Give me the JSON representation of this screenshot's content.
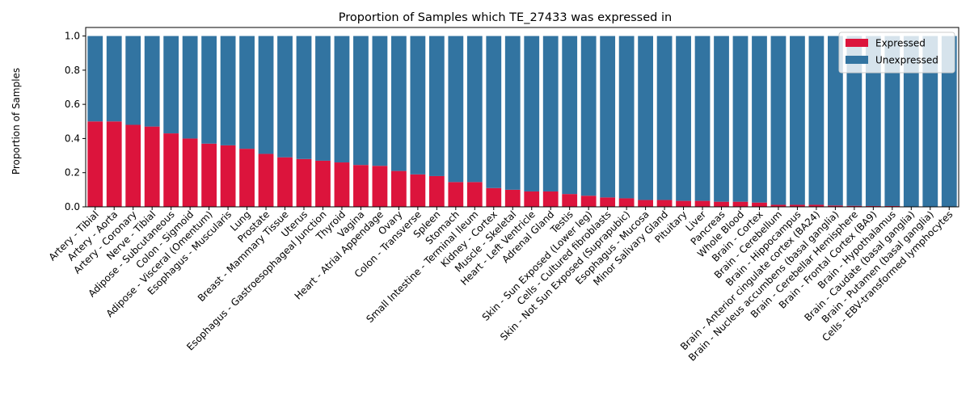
{
  "chart_data": {
    "type": "bar",
    "stacked": true,
    "title": "Proportion of Samples which TE_27433 was expressed in",
    "xlabel": "",
    "ylabel": "Proportion of Samples",
    "ylim": [
      0,
      1.05
    ],
    "yticks": [
      "0.0",
      "0.2",
      "0.4",
      "0.6",
      "0.8",
      "1.0"
    ],
    "grid": false,
    "legend_position": "top-right",
    "categories": [
      "Artery - Tibial",
      "Artery - Aorta",
      "Artery - Coronary",
      "Nerve - Tibial",
      "Adipose - Subcutaneous",
      "Colon - Sigmoid",
      "Adipose - Visceral (Omentum)",
      "Esophagus - Muscularis",
      "Lung",
      "Prostate",
      "Breast - Mammary Tissue",
      "Uterus",
      "Esophagus - Gastroesophageal Junction",
      "Thyroid",
      "Vagina",
      "Heart - Atrial Appendage",
      "Ovary",
      "Colon - Transverse",
      "Spleen",
      "Stomach",
      "Small Intestine - Terminal Ileum",
      "Kidney - Cortex",
      "Muscle - Skeletal",
      "Heart - Left Ventricle",
      "Adrenal Gland",
      "Testis",
      "Skin - Sun Exposed (Lower leg)",
      "Cells - Cultured fibroblasts",
      "Skin - Not Sun Exposed (Suprapubic)",
      "Esophagus - Mucosa",
      "Minor Salivary Gland",
      "Pituitary",
      "Liver",
      "Pancreas",
      "Whole Blood",
      "Brain - Cortex",
      "Brain - Cerebellum",
      "Brain - Hippocampus",
      "Brain - Anterior cingulate cortex (BA24)",
      "Brain - Nucleus accumbens (basal ganglia)",
      "Brain - Cerebellar Hemisphere",
      "Brain - Frontal Cortex (BA9)",
      "Brain - Hypothalamus",
      "Brain - Caudate (basal ganglia)",
      "Brain - Putamen (basal ganglia)",
      "Cells - EBV-transformed lymphocytes"
    ],
    "series": [
      {
        "name": "Expressed",
        "color": "#dc143c",
        "values": [
          0.5,
          0.5,
          0.48,
          0.47,
          0.43,
          0.4,
          0.37,
          0.36,
          0.34,
          0.31,
          0.29,
          0.28,
          0.27,
          0.26,
          0.245,
          0.24,
          0.21,
          0.19,
          0.18,
          0.145,
          0.145,
          0.11,
          0.1,
          0.09,
          0.09,
          0.075,
          0.065,
          0.055,
          0.05,
          0.04,
          0.04,
          0.035,
          0.035,
          0.03,
          0.03,
          0.025,
          0.012,
          0.012,
          0.012,
          0.008,
          0.006,
          0.005,
          0.005,
          0.0,
          0.0,
          0.0
        ]
      },
      {
        "name": "Unexpressed",
        "color": "#3274a1",
        "values": [
          0.5,
          0.5,
          0.52,
          0.53,
          0.57,
          0.6,
          0.63,
          0.64,
          0.66,
          0.69,
          0.71,
          0.72,
          0.73,
          0.74,
          0.755,
          0.76,
          0.79,
          0.81,
          0.82,
          0.855,
          0.855,
          0.89,
          0.9,
          0.91,
          0.91,
          0.925,
          0.935,
          0.945,
          0.95,
          0.96,
          0.96,
          0.965,
          0.965,
          0.97,
          0.97,
          0.975,
          0.988,
          0.988,
          0.988,
          0.992,
          0.994,
          0.995,
          0.995,
          1.0,
          1.0,
          1.0
        ]
      }
    ]
  }
}
